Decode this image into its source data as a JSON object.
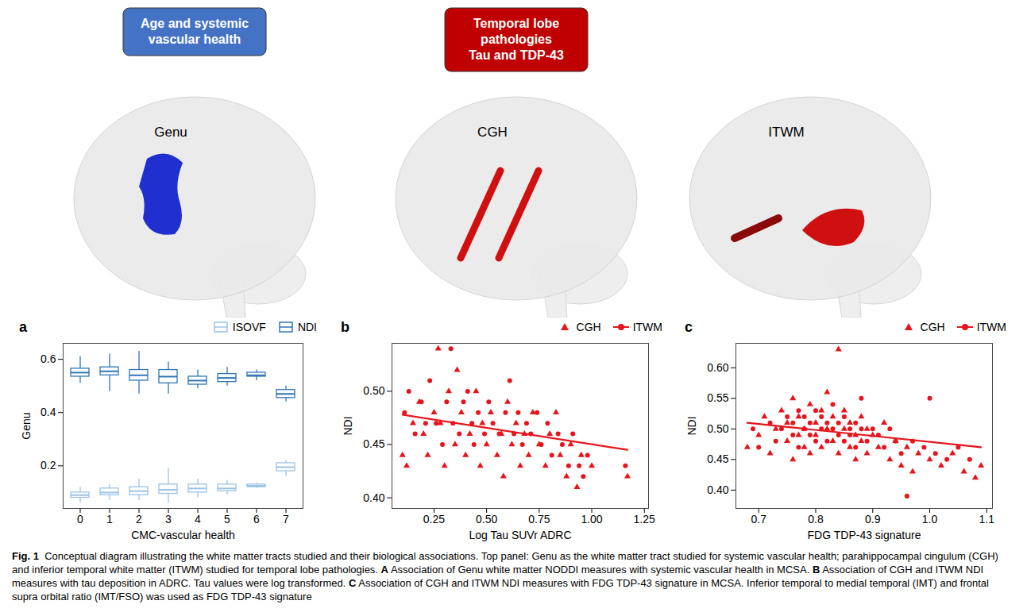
{
  "header_boxes": [
    {
      "lines": [
        "Age and systemic",
        "vascular health"
      ],
      "color": "#4472c4"
    },
    {
      "lines": [
        "Temporal lobe",
        "pathologies",
        "Tau and TDP-43"
      ],
      "color": "#c00000"
    }
  ],
  "tracts": [
    {
      "label": "Genu",
      "color": "#1f2fd0"
    },
    {
      "label": "CGH",
      "color": "#d01010"
    },
    {
      "label": "ITWM",
      "color": "#d01010"
    }
  ],
  "panel_letters": [
    "a",
    "b",
    "c"
  ],
  "caption": [
    {
      "text": "Fig. 1",
      "bold": true
    },
    {
      "text": "  Conceptual diagram illustrating the white matter tracts studied and their biological associations. Top panel: Genu as the white matter tract studied for systemic vascular health; parahippocampal cingulum (CGH) and inferior temporal white matter (ITWM) studied for temporal lobe pathologies. ",
      "bold": false
    },
    {
      "text": "A",
      "bold": true
    },
    {
      "text": " Association of Genu white matter NODDI measures with systemic vascular health in MCSA. ",
      "bold": false
    },
    {
      "text": "B",
      "bold": true
    },
    {
      "text": " Association of CGH and ITWM NDI measures with tau deposition in ADRC. Tau values were log transformed. ",
      "bold": false
    },
    {
      "text": "C",
      "bold": true
    },
    {
      "text": " Association of CGH and ITWM NDI measures with FDG TDP-43 signature in MCSA. Inferior temporal to medial temporal (IMT) and frontal supra orbital ratio (IMT/FSO) was used as FDG TDP-43 signature",
      "bold": false
    }
  ],
  "chart_data": [
    {
      "type": "box",
      "x_label": "CMC-vascular health",
      "y_label": "Genu",
      "categories": [
        0,
        1,
        2,
        3,
        4,
        5,
        6,
        7
      ],
      "ylim": [
        0.04,
        0.66
      ],
      "yticks": [
        0.2,
        0.4,
        0.6
      ],
      "grid": false,
      "legend": "top-right",
      "series": [
        {
          "name": "ISOVF",
          "color": "#9cc3e6",
          "boxes": [
            {
              "min": 0.06,
              "q1": 0.08,
              "median": 0.09,
              "q3": 0.1,
              "max": 0.12
            },
            {
              "min": 0.07,
              "q1": 0.09,
              "median": 0.1,
              "q3": 0.115,
              "max": 0.13
            },
            {
              "min": 0.07,
              "q1": 0.09,
              "median": 0.105,
              "q3": 0.12,
              "max": 0.15
            },
            {
              "min": 0.06,
              "q1": 0.095,
              "median": 0.11,
              "q3": 0.13,
              "max": 0.19
            },
            {
              "min": 0.08,
              "q1": 0.1,
              "median": 0.115,
              "q3": 0.13,
              "max": 0.15
            },
            {
              "min": 0.09,
              "q1": 0.105,
              "median": 0.115,
              "q3": 0.13,
              "max": 0.145
            },
            {
              "min": 0.115,
              "q1": 0.12,
              "median": 0.125,
              "q3": 0.13,
              "max": 0.135
            },
            {
              "min": 0.16,
              "q1": 0.18,
              "median": 0.195,
              "q3": 0.21,
              "max": 0.22
            }
          ]
        },
        {
          "name": "NDI",
          "color": "#2e75b6",
          "boxes": [
            {
              "min": 0.51,
              "q1": 0.535,
              "median": 0.55,
              "q3": 0.565,
              "max": 0.61
            },
            {
              "min": 0.48,
              "q1": 0.54,
              "median": 0.555,
              "q3": 0.57,
              "max": 0.62
            },
            {
              "min": 0.47,
              "q1": 0.52,
              "median": 0.54,
              "q3": 0.56,
              "max": 0.63
            },
            {
              "min": 0.47,
              "q1": 0.51,
              "median": 0.535,
              "q3": 0.56,
              "max": 0.59
            },
            {
              "min": 0.49,
              "q1": 0.505,
              "median": 0.52,
              "q3": 0.535,
              "max": 0.56
            },
            {
              "min": 0.5,
              "q1": 0.515,
              "median": 0.53,
              "q3": 0.545,
              "max": 0.57
            },
            {
              "min": 0.52,
              "q1": 0.535,
              "median": 0.54,
              "q3": 0.55,
              "max": 0.56
            },
            {
              "min": 0.44,
              "q1": 0.455,
              "median": 0.47,
              "q3": 0.485,
              "max": 0.5
            }
          ]
        }
      ]
    },
    {
      "type": "scatter",
      "x_label": "Log Tau SUVr ADRC",
      "y_label": "NDI",
      "xlim": [
        0.05,
        1.27
      ],
      "xticks": [
        {
          "value": 0.25,
          "label": "0.25"
        },
        {
          "value": 0.5,
          "label": "0.50"
        },
        {
          "value": 0.75,
          "label": "0.75"
        },
        {
          "value": 1,
          "label": "1.00"
        },
        {
          "value": 1.25,
          "label": "1.25"
        }
      ],
      "ylim": [
        0.39,
        0.545
      ],
      "yticks": [
        {
          "value": 0.4,
          "label": "0.40"
        },
        {
          "value": 0.45,
          "label": "0.45"
        },
        {
          "value": 0.5,
          "label": "0.50"
        }
      ],
      "grid": false,
      "legend": "top-right",
      "series": [
        {
          "name": "CGH",
          "color": "#e8141c",
          "marker": "triangle",
          "points": [
            [
              0.1,
              0.44
            ],
            [
              0.12,
              0.43
            ],
            [
              0.15,
              0.47
            ],
            [
              0.18,
              0.49
            ],
            [
              0.2,
              0.46
            ],
            [
              0.22,
              0.44
            ],
            [
              0.25,
              0.48
            ],
            [
              0.27,
              0.54
            ],
            [
              0.28,
              0.47
            ],
            [
              0.3,
              0.43
            ],
            [
              0.32,
              0.5
            ],
            [
              0.35,
              0.45
            ],
            [
              0.36,
              0.52
            ],
            [
              0.38,
              0.48
            ],
            [
              0.4,
              0.44
            ],
            [
              0.42,
              0.46
            ],
            [
              0.45,
              0.5
            ],
            [
              0.47,
              0.43
            ],
            [
              0.48,
              0.47
            ],
            [
              0.5,
              0.45
            ],
            [
              0.52,
              0.48
            ],
            [
              0.55,
              0.44
            ],
            [
              0.57,
              0.46
            ],
            [
              0.58,
              0.42
            ],
            [
              0.6,
              0.49
            ],
            [
              0.62,
              0.45
            ],
            [
              0.64,
              0.47
            ],
            [
              0.66,
              0.43
            ],
            [
              0.68,
              0.46
            ],
            [
              0.7,
              0.44
            ],
            [
              0.72,
              0.48
            ],
            [
              0.75,
              0.45
            ],
            [
              0.78,
              0.43
            ],
            [
              0.8,
              0.46
            ],
            [
              0.83,
              0.48
            ],
            [
              0.85,
              0.44
            ],
            [
              0.88,
              0.42
            ],
            [
              0.9,
              0.45
            ],
            [
              0.93,
              0.41
            ],
            [
              0.95,
              0.44
            ],
            [
              1.0,
              0.43
            ],
            [
              1.17,
              0.42
            ]
          ]
        },
        {
          "name": "ITWM",
          "color": "#e8141c",
          "marker": "circle",
          "trend": {
            "x": [
              0.1,
              1.17
            ],
            "y": [
              0.478,
              0.445
            ]
          },
          "points": [
            [
              0.11,
              0.48
            ],
            [
              0.13,
              0.5
            ],
            [
              0.16,
              0.46
            ],
            [
              0.19,
              0.49
            ],
            [
              0.21,
              0.47
            ],
            [
              0.23,
              0.51
            ],
            [
              0.26,
              0.47
            ],
            [
              0.29,
              0.45
            ],
            [
              0.31,
              0.49
            ],
            [
              0.33,
              0.54
            ],
            [
              0.34,
              0.47
            ],
            [
              0.37,
              0.46
            ],
            [
              0.39,
              0.49
            ],
            [
              0.41,
              0.5
            ],
            [
              0.43,
              0.47
            ],
            [
              0.44,
              0.45
            ],
            [
              0.46,
              0.48
            ],
            [
              0.49,
              0.46
            ],
            [
              0.51,
              0.49
            ],
            [
              0.53,
              0.47
            ],
            [
              0.56,
              0.46
            ],
            [
              0.59,
              0.48
            ],
            [
              0.61,
              0.51
            ],
            [
              0.63,
              0.46
            ],
            [
              0.65,
              0.48
            ],
            [
              0.67,
              0.45
            ],
            [
              0.69,
              0.47
            ],
            [
              0.71,
              0.46
            ],
            [
              0.74,
              0.48
            ],
            [
              0.76,
              0.45
            ],
            [
              0.79,
              0.47
            ],
            [
              0.81,
              0.44
            ],
            [
              0.84,
              0.46
            ],
            [
              0.86,
              0.45
            ],
            [
              0.89,
              0.43
            ],
            [
              0.91,
              0.46
            ],
            [
              0.94,
              0.43
            ],
            [
              0.96,
              0.42
            ],
            [
              0.98,
              0.44
            ],
            [
              1.16,
              0.43
            ]
          ]
        }
      ]
    },
    {
      "type": "scatter",
      "x_label": "FDG TDP-43 signature",
      "y_label": "NDI",
      "xlim": [
        0.66,
        1.11
      ],
      "xticks": [
        0.7,
        0.8,
        0.9,
        {
          "value": 1,
          "label": "1.0"
        },
        1.1
      ],
      "ylim": [
        0.37,
        0.64
      ],
      "yticks": [
        {
          "value": 0.4,
          "label": "0.40"
        },
        0.45,
        {
          "value": 0.5,
          "label": "0.50"
        },
        0.55,
        {
          "value": 0.6,
          "label": "0.60"
        }
      ],
      "grid": false,
      "legend": "top-right",
      "series": [
        {
          "name": "CGH",
          "color": "#e8141c",
          "marker": "triangle",
          "points": [
            [
              0.68,
              0.47
            ],
            [
              0.7,
              0.49
            ],
            [
              0.71,
              0.52
            ],
            [
              0.72,
              0.46
            ],
            [
              0.73,
              0.5
            ],
            [
              0.74,
              0.53
            ],
            [
              0.75,
              0.48
            ],
            [
              0.75,
              0.51
            ],
            [
              0.76,
              0.45
            ],
            [
              0.76,
              0.55
            ],
            [
              0.77,
              0.49
            ],
            [
              0.77,
              0.52
            ],
            [
              0.78,
              0.47
            ],
            [
              0.78,
              0.5
            ],
            [
              0.79,
              0.54
            ],
            [
              0.79,
              0.46
            ],
            [
              0.8,
              0.51
            ],
            [
              0.8,
              0.49
            ],
            [
              0.81,
              0.53
            ],
            [
              0.81,
              0.47
            ],
            [
              0.82,
              0.5
            ],
            [
              0.82,
              0.56
            ],
            [
              0.83,
              0.48
            ],
            [
              0.83,
              0.52
            ],
            [
              0.84,
              0.46
            ],
            [
              0.84,
              0.63
            ],
            [
              0.85,
              0.5
            ],
            [
              0.85,
              0.53
            ],
            [
              0.86,
              0.47
            ],
            [
              0.86,
              0.51
            ],
            [
              0.87,
              0.49
            ],
            [
              0.87,
              0.45
            ],
            [
              0.88,
              0.52
            ],
            [
              0.88,
              0.48
            ],
            [
              0.89,
              0.5
            ],
            [
              0.89,
              0.46
            ],
            [
              0.9,
              0.49
            ],
            [
              0.91,
              0.47
            ],
            [
              0.92,
              0.51
            ],
            [
              0.93,
              0.45
            ],
            [
              0.94,
              0.48
            ],
            [
              0.95,
              0.44
            ],
            [
              0.96,
              0.47
            ],
            [
              0.97,
              0.43
            ],
            [
              0.98,
              0.46
            ],
            [
              1.0,
              0.45
            ],
            [
              1.02,
              0.44
            ],
            [
              1.04,
              0.46
            ],
            [
              1.06,
              0.43
            ],
            [
              1.08,
              0.42
            ],
            [
              1.09,
              0.44
            ]
          ]
        },
        {
          "name": "ITWM",
          "color": "#e8141c",
          "marker": "circle",
          "trend": {
            "x": [
              0.68,
              1.09
            ],
            "y": [
              0.51,
              0.47
            ]
          },
          "points": [
            [
              0.69,
              0.5
            ],
            [
              0.7,
              0.47
            ],
            [
              0.72,
              0.51
            ],
            [
              0.73,
              0.48
            ],
            [
              0.74,
              0.5
            ],
            [
              0.75,
              0.52
            ],
            [
              0.76,
              0.49
            ],
            [
              0.76,
              0.51
            ],
            [
              0.77,
              0.47
            ],
            [
              0.77,
              0.53
            ],
            [
              0.78,
              0.5
            ],
            [
              0.78,
              0.52
            ],
            [
              0.79,
              0.49
            ],
            [
              0.79,
              0.51
            ],
            [
              0.8,
              0.48
            ],
            [
              0.8,
              0.53
            ],
            [
              0.81,
              0.5
            ],
            [
              0.81,
              0.52
            ],
            [
              0.82,
              0.48
            ],
            [
              0.82,
              0.51
            ],
            [
              0.83,
              0.5
            ],
            [
              0.83,
              0.54
            ],
            [
              0.84,
              0.49
            ],
            [
              0.84,
              0.51
            ],
            [
              0.85,
              0.48
            ],
            [
              0.85,
              0.52
            ],
            [
              0.86,
              0.5
            ],
            [
              0.86,
              0.49
            ],
            [
              0.87,
              0.51
            ],
            [
              0.87,
              0.47
            ],
            [
              0.88,
              0.5
            ],
            [
              0.88,
              0.55
            ],
            [
              0.89,
              0.48
            ],
            [
              0.9,
              0.5
            ],
            [
              0.91,
              0.49
            ],
            [
              0.92,
              0.47
            ],
            [
              0.93,
              0.5
            ],
            [
              0.94,
              0.48
            ],
            [
              0.95,
              0.46
            ],
            [
              0.96,
              0.39
            ],
            [
              0.97,
              0.48
            ],
            [
              0.99,
              0.47
            ],
            [
              1.0,
              0.55
            ],
            [
              1.01,
              0.46
            ],
            [
              1.03,
              0.45
            ],
            [
              1.05,
              0.47
            ],
            [
              1.07,
              0.45
            ]
          ]
        }
      ]
    }
  ]
}
